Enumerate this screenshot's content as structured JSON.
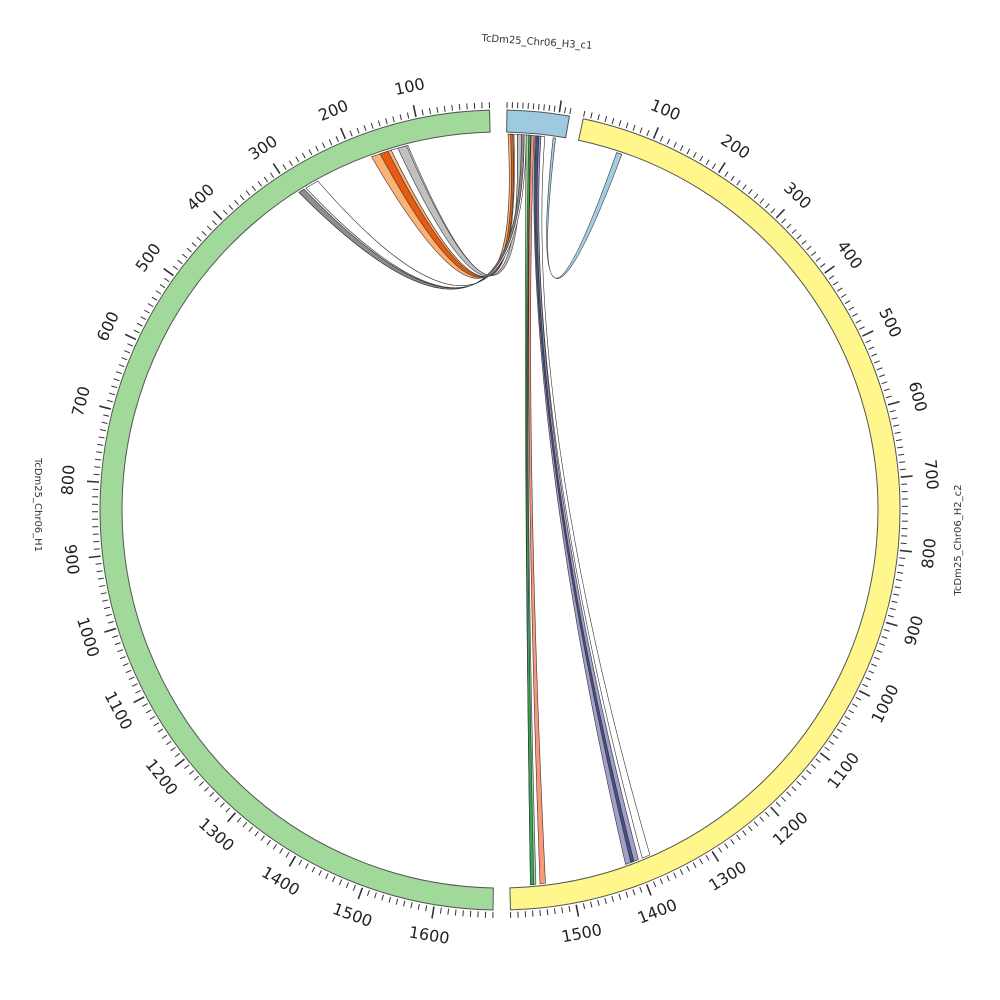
{
  "chart_data": {
    "type": "chord",
    "chromosomes": [
      {
        "id": "H1",
        "name": "TcDm25_Chr06_H1",
        "length": 1680,
        "color": "#a1d99b",
        "tick_labels": [
          "100",
          "200",
          "300",
          "400",
          "500",
          "600",
          "700",
          "800",
          "900",
          "1000",
          "1100",
          "1200",
          "1300",
          "1400",
          "1500",
          "1600"
        ]
      },
      {
        "id": "H3",
        "name": "TcDm25_Chr06_H3_c1",
        "length": 120,
        "color": "#9ecae1",
        "tick_labels": []
      },
      {
        "id": "H2",
        "name": "TcDm25_Chr06_H2_c2",
        "length": 1590,
        "color": "#fff78c",
        "tick_labels": [
          "100",
          "200",
          "300",
          "400",
          "500",
          "600",
          "700",
          "800",
          "900",
          "1000",
          "1100",
          "1200",
          "1300",
          "1400",
          "1500"
        ]
      }
    ],
    "links": [
      {
        "color": "#9ecae1",
        "a": [
          "H3",
          95,
          100
        ],
        "b": [
          "H2",
          58,
          66
        ]
      },
      {
        "color": "#fdae6b",
        "a": [
          "H3",
          3,
          13
        ],
        "b": [
          "H1",
          145,
          175
        ]
      },
      {
        "color": "#e6550d",
        "a": [
          "H3",
          8,
          13
        ],
        "b": [
          "H1",
          150,
          162
        ]
      },
      {
        "color": "#ffffff",
        "a": [
          "H3",
          15,
          22
        ],
        "b": [
          "H1",
          120,
          145
        ]
      },
      {
        "color": "#bdbdbd",
        "a": [
          "H3",
          22,
          30
        ],
        "b": [
          "H1",
          122,
          135
        ]
      },
      {
        "color": "#888888",
        "a": [
          "H3",
          30,
          36
        ],
        "b": [
          "H1",
          283,
          292
        ]
      },
      {
        "color": "#ffffff",
        "a": [
          "H3",
          36,
          40
        ],
        "b": [
          "H1",
          260,
          280
        ]
      },
      {
        "color": "#a1d99b",
        "a": [
          "H3",
          40,
          50
        ],
        "b": [
          "H2",
          1552,
          1560
        ]
      },
      {
        "color": "#31a354",
        "a": [
          "H3",
          45,
          49
        ],
        "b": [
          "H2",
          1555,
          1560
        ]
      },
      {
        "color": "#fc9272",
        "a": [
          "H3",
          50,
          56
        ],
        "b": [
          "H2",
          1538,
          1546
        ]
      },
      {
        "color": "#9e9ac8",
        "a": [
          "H3",
          58,
          70
        ],
        "b": [
          "H2",
          1398,
          1418
        ]
      },
      {
        "color": "#3f4a7a",
        "a": [
          "H3",
          60,
          66
        ],
        "b": [
          "H2",
          1405,
          1410
        ]
      },
      {
        "color": "#ffffff",
        "a": [
          "H3",
          70,
          78
        ],
        "b": [
          "H2",
          1380,
          1392
        ]
      }
    ]
  }
}
